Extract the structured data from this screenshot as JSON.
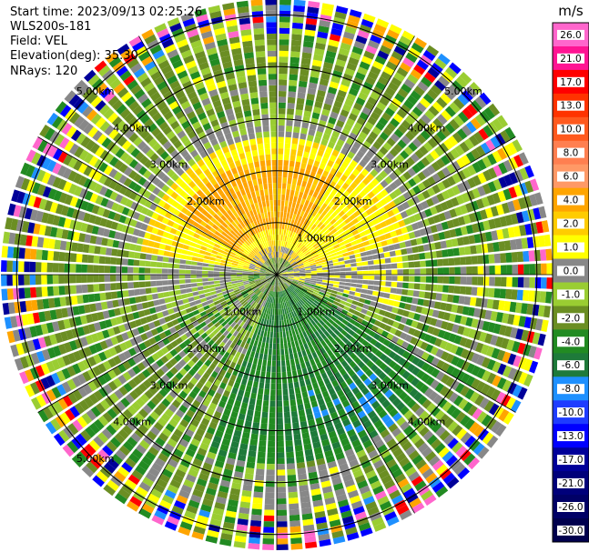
{
  "header": {
    "start_time": "Start time: 2023/09/13 02:25:26",
    "instrument": "WLS200s-181",
    "field": "Field: VEL",
    "elevation": "Elevation(deg): 35.30",
    "nrays": "NRays: 120"
  },
  "chart_data": {
    "type": "heatmap",
    "projection": "polar-ppi",
    "field": "VEL",
    "units": "m/s",
    "nrays": 120,
    "max_range_km": 5.3,
    "range_rings_km": [
      1,
      2,
      3,
      4,
      5
    ],
    "ring_labels_nw": [
      "",
      "2.00km",
      "3.00km",
      "4.00km",
      "5.00km"
    ],
    "ring_labels_ne": [
      "1.00km",
      "2.00km",
      "3.00km",
      "4.00km",
      "5.00km"
    ],
    "ring_labels_se": [
      "1.00km",
      "2.00km",
      "3.00km",
      "4.00km",
      ""
    ],
    "ring_labels_sw": [
      "1.00km",
      "2.00km",
      "3.00km",
      "4.00km",
      "5.00km"
    ],
    "colorbar": {
      "title": "m/s",
      "tick_labels": [
        "26.0",
        "21.0",
        "17.0",
        "13.0",
        "10.0",
        "8.0",
        "6.0",
        "4.0",
        "2.0",
        "1.0",
        "0.0",
        "-1.0",
        "-2.0",
        "-4.0",
        "-6.0",
        "-8.0",
        "-10.0",
        "-13.0",
        "-17.0",
        "-21.0",
        "-26.0",
        "-30.0"
      ],
      "colors": [
        "#ff66cc",
        "#ff1493",
        "#ff0000",
        "#ff3300",
        "#ff5a1e",
        "#ff7f50",
        "#ff9966",
        "#ffa500",
        "#ffcc00",
        "#ffff00",
        "#888888",
        "#9acd32",
        "#6b8e23",
        "#228b22",
        "#1e7a3a",
        "#1e90ff",
        "#1e3cff",
        "#0000ff",
        "#000099",
        "#00007a",
        "#000066",
        "#00004d"
      ]
    }
  }
}
